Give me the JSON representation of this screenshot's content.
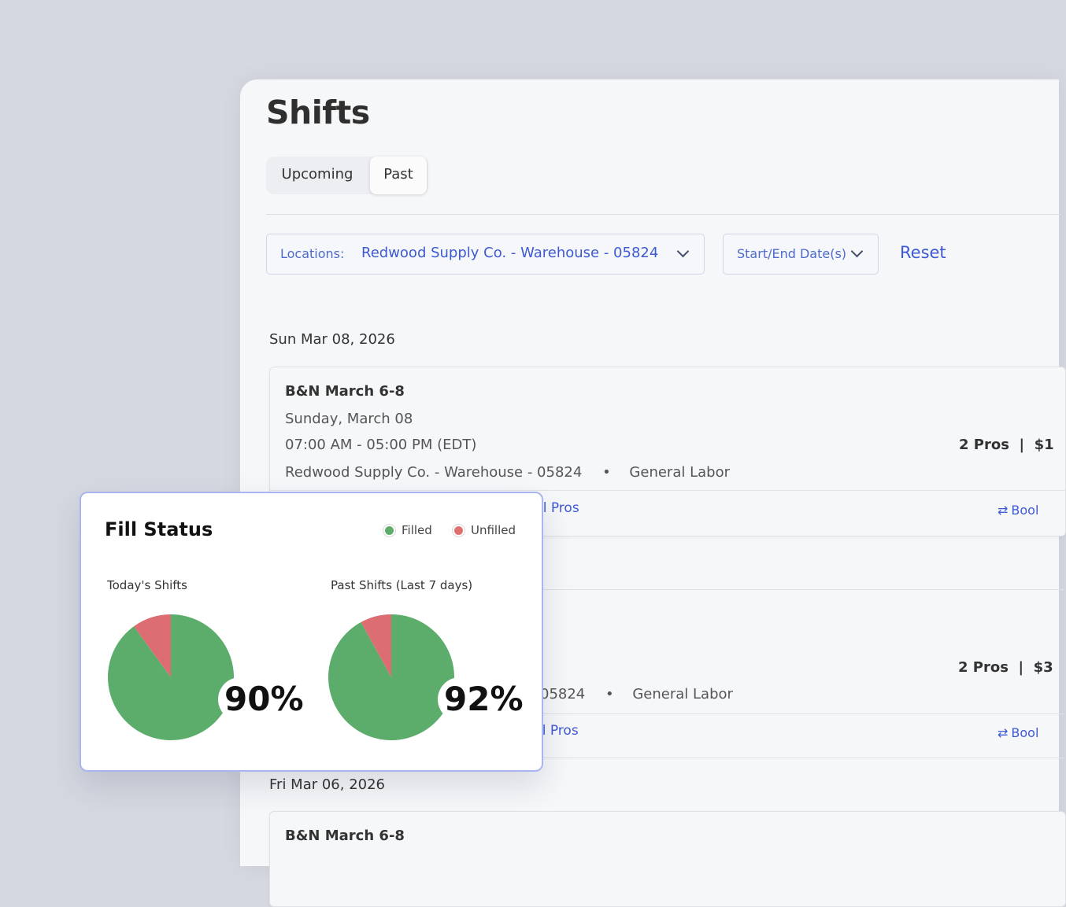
{
  "page": {
    "title": "Shifts",
    "tabs": [
      {
        "label": "Upcoming",
        "active": false
      },
      {
        "label": "Past",
        "active": true
      }
    ]
  },
  "filters": {
    "location_label": "Locations:",
    "location_value": "Redwood Supply Co. - Warehouse - 05824",
    "date_label": "Start/End Date(s)",
    "reset_label": "Reset"
  },
  "groups": [
    {
      "date": "Sun Mar 08, 2026",
      "card": {
        "name": "B&N March 6-8",
        "day": "Sunday, March 08",
        "time": "07:00 AM - 05:00 PM (EDT)",
        "pros": "2 Pros  |  $1",
        "location": "Redwood Supply Co. - Warehouse - 05824",
        "separator": "•",
        "role": "General Labor",
        "fill_link": "ll Pros",
        "book_link": "Bool"
      }
    },
    {
      "card": {
        "pros": "2 Pros  |  $3",
        "location_tail": "05824",
        "separator": "•",
        "role": "General Labor",
        "fill_link": "ll Pros",
        "book_link": "Bool"
      }
    },
    {
      "date": "Fri Mar 06, 2026",
      "card": {
        "name": "B&N March 6-8"
      }
    }
  ],
  "fill_status": {
    "title": "Fill Status",
    "legend": [
      {
        "label": "Filled",
        "color": "#5cad6b"
      },
      {
        "label": "Unfilled",
        "color": "#e07070"
      }
    ],
    "colors": {
      "filled": "#5cad6b",
      "unfilled": "#dc6d72"
    },
    "charts": [
      {
        "label": "Today's Shifts",
        "filled_percent": 90,
        "percent_label": "90%"
      },
      {
        "label": "Past Shifts (Last 7 days)",
        "filled_percent": 92,
        "percent_label": "92%"
      }
    ]
  }
}
